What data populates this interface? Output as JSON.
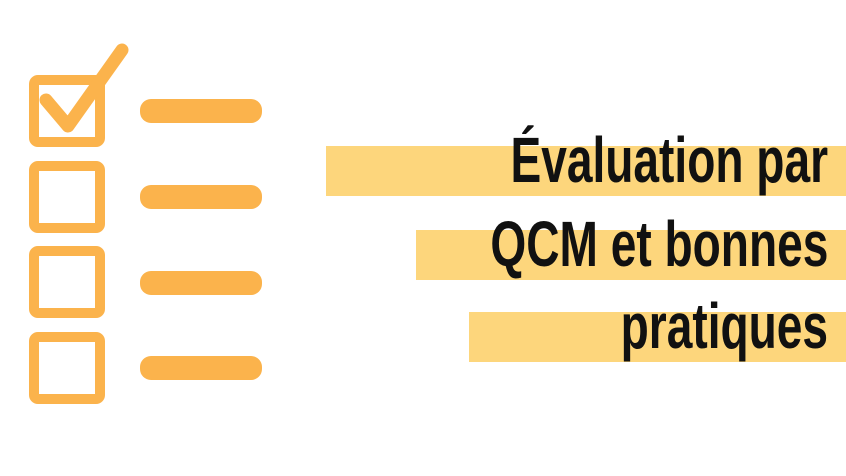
{
  "title": {
    "lines": [
      "Évaluation par",
      "QCM et bonnes",
      "pratiques"
    ]
  },
  "colors": {
    "accent": "#FBB34C",
    "highlight": "#FDD67C",
    "text": "#111111",
    "background": "#FFFFFF"
  },
  "checklist": {
    "icon": "checklist-icon",
    "items": [
      {
        "checked": true,
        "icon": "checkmark-icon"
      },
      {
        "checked": false
      },
      {
        "checked": false
      },
      {
        "checked": false
      }
    ]
  }
}
